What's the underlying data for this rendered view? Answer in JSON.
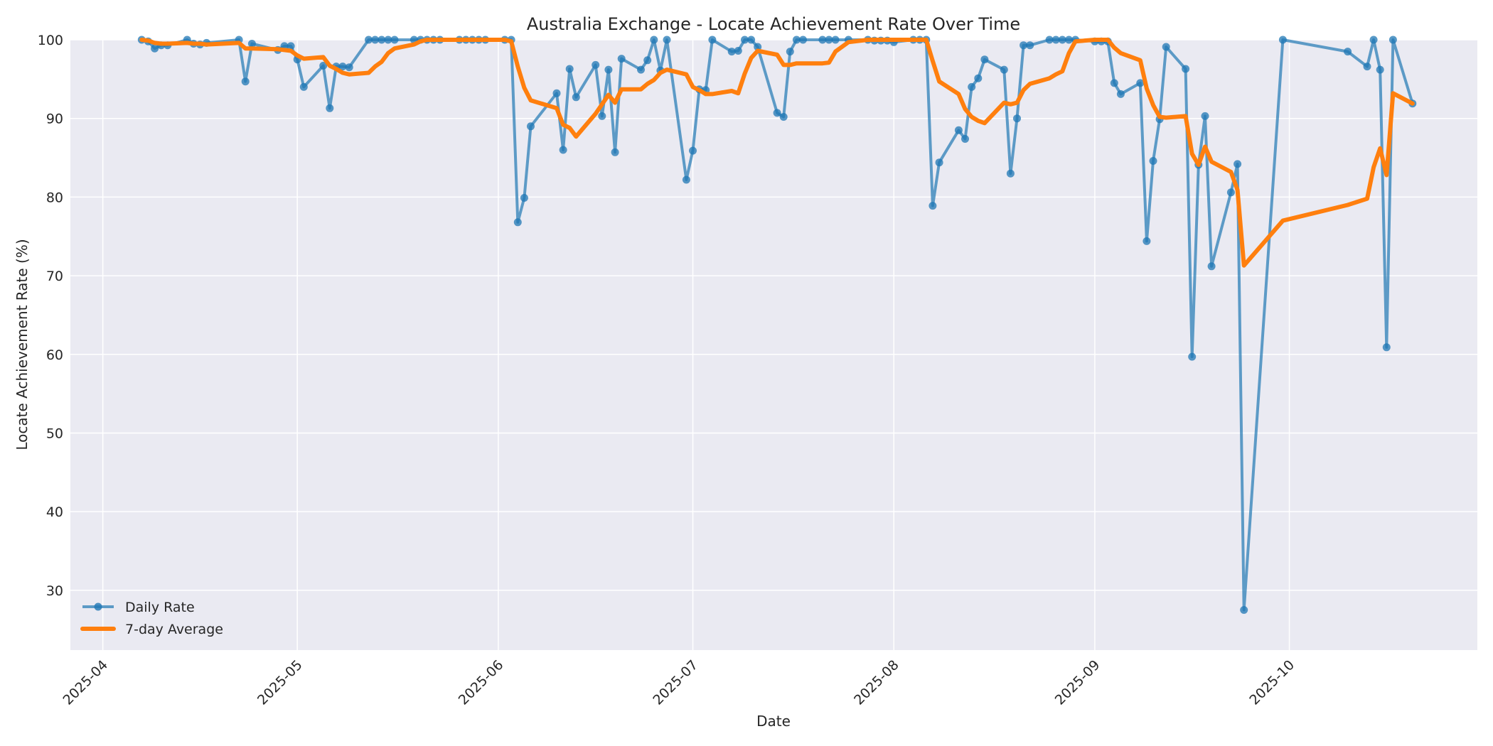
{
  "chart_data": {
    "type": "line",
    "title": "Australia Exchange - Locate Achievement Rate Over Time",
    "xlabel": "Date",
    "ylabel": "Locate Achievement Rate (%)",
    "ylim": [
      22.4,
      100
    ],
    "xlim": [
      "2025-03-27",
      "2025-10-30"
    ],
    "grid": true,
    "legend_position": "lower left",
    "x_ticks": [
      "2025-04",
      "2025-05",
      "2025-06",
      "2025-07",
      "2025-08",
      "2025-09",
      "2025-10"
    ],
    "y_ticks": [
      30,
      40,
      50,
      60,
      70,
      80,
      90,
      100
    ],
    "colors": {
      "daily": "#1f77b4",
      "avg": "#ff7f0e",
      "plot_bg": "#eaeaf2",
      "grid": "#ffffff"
    },
    "legend": [
      {
        "label": "Daily Rate",
        "style": "line-marker"
      },
      {
        "label": "7-day Average",
        "style": "thick-line"
      }
    ],
    "series": [
      {
        "name": "Daily Rate",
        "points": [
          [
            "2025-04-07",
            100
          ],
          [
            "2025-04-08",
            99.8
          ],
          [
            "2025-04-09",
            98.9
          ],
          [
            "2025-04-10",
            99.3
          ],
          [
            "2025-04-11",
            99.3
          ],
          [
            "2025-04-14",
            100
          ],
          [
            "2025-04-15",
            99.5
          ],
          [
            "2025-04-16",
            99.4
          ],
          [
            "2025-04-17",
            99.6
          ],
          [
            "2025-04-22",
            100
          ],
          [
            "2025-04-23",
            94.7
          ],
          [
            "2025-04-24",
            99.5
          ],
          [
            "2025-04-28",
            98.7
          ],
          [
            "2025-04-29",
            99.2
          ],
          [
            "2025-04-30",
            99.2
          ],
          [
            "2025-05-01",
            97.5
          ],
          [
            "2025-05-02",
            94.0
          ],
          [
            "2025-05-05",
            96.7
          ],
          [
            "2025-05-06",
            91.3
          ],
          [
            "2025-05-07",
            96.6
          ],
          [
            "2025-05-08",
            96.6
          ],
          [
            "2025-05-09",
            96.5
          ],
          [
            "2025-05-12",
            100
          ],
          [
            "2025-05-13",
            100
          ],
          [
            "2025-05-14",
            100
          ],
          [
            "2025-05-15",
            100
          ],
          [
            "2025-05-16",
            100
          ],
          [
            "2025-05-19",
            100
          ],
          [
            "2025-05-20",
            100
          ],
          [
            "2025-05-21",
            100
          ],
          [
            "2025-05-22",
            100
          ],
          [
            "2025-05-23",
            100
          ],
          [
            "2025-05-26",
            100
          ],
          [
            "2025-05-27",
            100
          ],
          [
            "2025-05-28",
            100
          ],
          [
            "2025-05-29",
            100
          ],
          [
            "2025-05-30",
            100
          ],
          [
            "2025-06-02",
            100
          ],
          [
            "2025-06-03",
            100
          ],
          [
            "2025-06-04",
            76.8
          ],
          [
            "2025-06-05",
            79.9
          ],
          [
            "2025-06-06",
            89.0
          ],
          [
            "2025-06-10",
            93.2
          ],
          [
            "2025-06-11",
            86.0
          ],
          [
            "2025-06-12",
            96.3
          ],
          [
            "2025-06-13",
            92.7
          ],
          [
            "2025-06-16",
            96.8
          ],
          [
            "2025-06-17",
            90.3
          ],
          [
            "2025-06-18",
            96.2
          ],
          [
            "2025-06-19",
            85.7
          ],
          [
            "2025-06-20",
            97.6
          ],
          [
            "2025-06-23",
            96.2
          ],
          [
            "2025-06-24",
            97.4
          ],
          [
            "2025-06-25",
            100
          ],
          [
            "2025-06-26",
            96.1
          ],
          [
            "2025-06-27",
            100
          ],
          [
            "2025-06-30",
            82.2
          ],
          [
            "2025-07-01",
            85.9
          ],
          [
            "2025-07-02",
            93.7
          ],
          [
            "2025-07-03",
            93.6
          ],
          [
            "2025-07-04",
            100
          ],
          [
            "2025-07-07",
            98.5
          ],
          [
            "2025-07-08",
            98.6
          ],
          [
            "2025-07-09",
            100
          ],
          [
            "2025-07-10",
            100
          ],
          [
            "2025-07-11",
            99.1
          ],
          [
            "2025-07-14",
            90.7
          ],
          [
            "2025-07-15",
            90.2
          ],
          [
            "2025-07-16",
            98.5
          ],
          [
            "2025-07-17",
            100
          ],
          [
            "2025-07-18",
            100
          ],
          [
            "2025-07-21",
            100
          ],
          [
            "2025-07-22",
            100
          ],
          [
            "2025-07-23",
            100
          ],
          [
            "2025-07-25",
            100
          ],
          [
            "2025-07-28",
            100
          ],
          [
            "2025-07-29",
            99.9
          ],
          [
            "2025-07-30",
            99.9
          ],
          [
            "2025-07-31",
            99.9
          ],
          [
            "2025-08-01",
            99.7
          ],
          [
            "2025-08-04",
            100
          ],
          [
            "2025-08-05",
            100
          ],
          [
            "2025-08-06",
            100
          ],
          [
            "2025-08-07",
            78.9
          ],
          [
            "2025-08-08",
            84.4
          ],
          [
            "2025-08-11",
            88.5
          ],
          [
            "2025-08-12",
            87.4
          ],
          [
            "2025-08-13",
            94.0
          ],
          [
            "2025-08-14",
            95.1
          ],
          [
            "2025-08-15",
            97.5
          ],
          [
            "2025-08-18",
            96.2
          ],
          [
            "2025-08-19",
            83.0
          ],
          [
            "2025-08-20",
            90.0
          ],
          [
            "2025-08-21",
            99.3
          ],
          [
            "2025-08-22",
            99.3
          ],
          [
            "2025-08-25",
            100
          ],
          [
            "2025-08-26",
            100
          ],
          [
            "2025-08-27",
            100
          ],
          [
            "2025-08-28",
            100
          ],
          [
            "2025-08-29",
            100
          ],
          [
            "2025-09-01",
            99.8
          ],
          [
            "2025-09-02",
            99.8
          ],
          [
            "2025-09-03",
            99.8
          ],
          [
            "2025-09-04",
            94.5
          ],
          [
            "2025-09-05",
            93.1
          ],
          [
            "2025-09-08",
            94.5
          ],
          [
            "2025-09-09",
            74.4
          ],
          [
            "2025-09-10",
            84.6
          ],
          [
            "2025-09-11",
            89.9
          ],
          [
            "2025-09-12",
            99.1
          ],
          [
            "2025-09-15",
            96.3
          ],
          [
            "2025-09-16",
            59.7
          ],
          [
            "2025-09-17",
            84.1
          ],
          [
            "2025-09-18",
            90.3
          ],
          [
            "2025-09-19",
            71.2
          ],
          [
            "2025-09-22",
            80.6
          ],
          [
            "2025-09-23",
            84.2
          ],
          [
            "2025-09-24",
            27.5
          ],
          [
            "2025-09-30",
            100
          ],
          [
            "2025-10-10",
            98.5
          ],
          [
            "2025-10-13",
            96.6
          ],
          [
            "2025-10-14",
            100
          ],
          [
            "2025-10-15",
            96.2
          ],
          [
            "2025-10-16",
            60.9
          ],
          [
            "2025-10-17",
            100
          ],
          [
            "2025-10-20",
            91.9
          ]
        ]
      },
      {
        "name": "7-day Average",
        "points": [
          [
            "2025-04-07",
            100
          ],
          [
            "2025-04-08",
            99.9
          ],
          [
            "2025-04-09",
            99.6
          ],
          [
            "2025-04-10",
            99.5
          ],
          [
            "2025-04-11",
            99.5
          ],
          [
            "2025-04-14",
            99.6
          ],
          [
            "2025-04-15",
            99.5
          ],
          [
            "2025-04-16",
            99.5
          ],
          [
            "2025-04-17",
            99.4
          ],
          [
            "2025-04-22",
            99.6
          ],
          [
            "2025-04-23",
            98.9
          ],
          [
            "2025-04-24",
            98.9
          ],
          [
            "2025-04-28",
            98.8
          ],
          [
            "2025-04-29",
            98.7
          ],
          [
            "2025-04-30",
            98.6
          ],
          [
            "2025-05-01",
            98.0
          ],
          [
            "2025-05-02",
            97.6
          ],
          [
            "2025-05-05",
            97.8
          ],
          [
            "2025-05-06",
            96.7
          ],
          [
            "2025-05-07",
            96.3
          ],
          [
            "2025-05-08",
            95.8
          ],
          [
            "2025-05-09",
            95.6
          ],
          [
            "2025-05-12",
            95.8
          ],
          [
            "2025-05-13",
            96.6
          ],
          [
            "2025-05-14",
            97.2
          ],
          [
            "2025-05-15",
            98.3
          ],
          [
            "2025-05-16",
            98.9
          ],
          [
            "2025-05-19",
            99.4
          ],
          [
            "2025-05-20",
            99.8
          ],
          [
            "2025-05-21",
            100
          ],
          [
            "2025-05-22",
            100
          ],
          [
            "2025-05-23",
            100
          ],
          [
            "2025-05-26",
            100
          ],
          [
            "2025-05-27",
            100
          ],
          [
            "2025-05-28",
            100
          ],
          [
            "2025-05-29",
            100
          ],
          [
            "2025-05-30",
            100
          ],
          [
            "2025-06-02",
            100
          ],
          [
            "2025-06-03",
            99.8
          ],
          [
            "2025-06-04",
            96.6
          ],
          [
            "2025-06-05",
            93.9
          ],
          [
            "2025-06-06",
            92.3
          ],
          [
            "2025-06-10",
            91.3
          ],
          [
            "2025-06-11",
            89.2
          ],
          [
            "2025-06-12",
            88.8
          ],
          [
            "2025-06-13",
            87.7
          ],
          [
            "2025-06-16",
            90.6
          ],
          [
            "2025-06-17",
            91.8
          ],
          [
            "2025-06-18",
            93.0
          ],
          [
            "2025-06-19",
            92.0
          ],
          [
            "2025-06-20",
            93.7
          ],
          [
            "2025-06-23",
            93.7
          ],
          [
            "2025-06-24",
            94.4
          ],
          [
            "2025-06-25",
            94.9
          ],
          [
            "2025-06-26",
            95.8
          ],
          [
            "2025-06-27",
            96.2
          ],
          [
            "2025-06-30",
            95.6
          ],
          [
            "2025-07-01",
            94.0
          ],
          [
            "2025-07-02",
            93.6
          ],
          [
            "2025-07-03",
            93.1
          ],
          [
            "2025-07-04",
            93.1
          ],
          [
            "2025-07-07",
            93.5
          ],
          [
            "2025-07-08",
            93.2
          ],
          [
            "2025-07-09",
            95.7
          ],
          [
            "2025-07-10",
            97.7
          ],
          [
            "2025-07-11",
            98.6
          ],
          [
            "2025-07-14",
            98.1
          ],
          [
            "2025-07-15",
            96.8
          ],
          [
            "2025-07-16",
            96.8
          ],
          [
            "2025-07-17",
            97.0
          ],
          [
            "2025-07-18",
            97.0
          ],
          [
            "2025-07-21",
            97.0
          ],
          [
            "2025-07-22",
            97.1
          ],
          [
            "2025-07-23",
            98.5
          ],
          [
            "2025-07-25",
            99.7
          ],
          [
            "2025-07-28",
            100
          ],
          [
            "2025-07-29",
            100
          ],
          [
            "2025-07-30",
            100
          ],
          [
            "2025-07-31",
            100
          ],
          [
            "2025-08-01",
            100
          ],
          [
            "2025-08-04",
            100
          ],
          [
            "2025-08-05",
            100
          ],
          [
            "2025-08-06",
            100
          ],
          [
            "2025-08-07",
            97.3
          ],
          [
            "2025-08-08",
            94.7
          ],
          [
            "2025-08-11",
            93.1
          ],
          [
            "2025-08-12",
            91.2
          ],
          [
            "2025-08-13",
            90.2
          ],
          [
            "2025-08-14",
            89.7
          ],
          [
            "2025-08-15",
            89.4
          ],
          [
            "2025-08-18",
            92.0
          ],
          [
            "2025-08-19",
            91.8
          ],
          [
            "2025-08-20",
            92.0
          ],
          [
            "2025-08-21",
            93.6
          ],
          [
            "2025-08-22",
            94.4
          ],
          [
            "2025-08-25",
            95.1
          ],
          [
            "2025-08-26",
            95.6
          ],
          [
            "2025-08-27",
            96.0
          ],
          [
            "2025-08-28",
            98.3
          ],
          [
            "2025-08-29",
            99.8
          ],
          [
            "2025-09-01",
            100
          ],
          [
            "2025-09-02",
            100
          ],
          [
            "2025-09-03",
            100
          ],
          [
            "2025-09-04",
            99.0
          ],
          [
            "2025-09-05",
            98.3
          ],
          [
            "2025-09-08",
            97.4
          ],
          [
            "2025-09-09",
            93.8
          ],
          [
            "2025-09-10",
            91.7
          ],
          [
            "2025-09-11",
            90.2
          ],
          [
            "2025-09-12",
            90.1
          ],
          [
            "2025-09-15",
            90.3
          ],
          [
            "2025-09-16",
            85.5
          ],
          [
            "2025-09-17",
            84.1
          ],
          [
            "2025-09-18",
            86.4
          ],
          [
            "2025-09-19",
            84.5
          ],
          [
            "2025-09-22",
            83.2
          ],
          [
            "2025-09-23",
            80.9
          ],
          [
            "2025-09-24",
            71.3
          ],
          [
            "2025-09-30",
            77.0
          ],
          [
            "2025-10-10",
            79.0
          ],
          [
            "2025-10-13",
            79.8
          ],
          [
            "2025-10-14",
            83.8
          ],
          [
            "2025-10-15",
            86.2
          ],
          [
            "2025-10-16",
            82.8
          ],
          [
            "2025-10-17",
            93.2
          ],
          [
            "2025-10-20",
            91.9
          ]
        ]
      }
    ]
  }
}
